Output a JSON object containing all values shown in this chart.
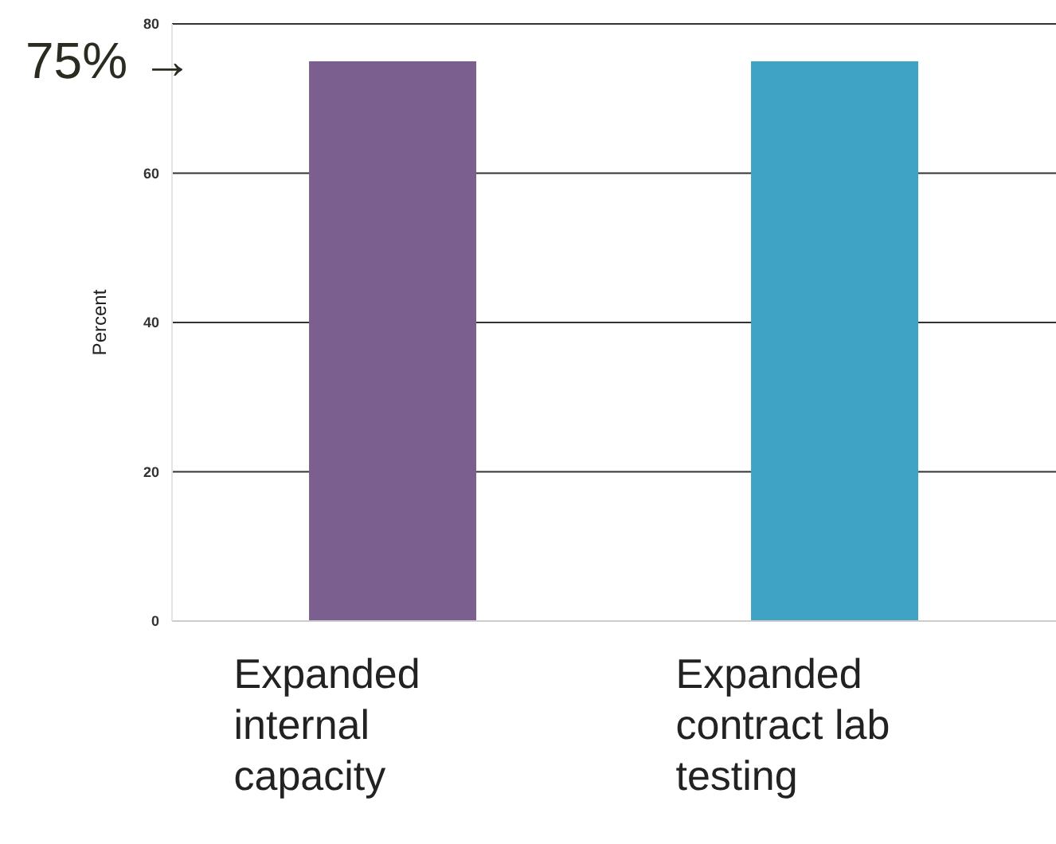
{
  "chart_data": {
    "type": "bar",
    "ylabel": "Percent",
    "categories": [
      "Expanded internal capacity",
      "Expanded contract lab testing"
    ],
    "values": [
      75,
      75
    ],
    "colors": [
      "#7b5f8e",
      "#3ea3c4"
    ],
    "ylim": [
      0,
      80
    ],
    "yticks": [
      0,
      20,
      40,
      60,
      80
    ],
    "grid": "y",
    "annotations": [
      "75% →"
    ]
  }
}
